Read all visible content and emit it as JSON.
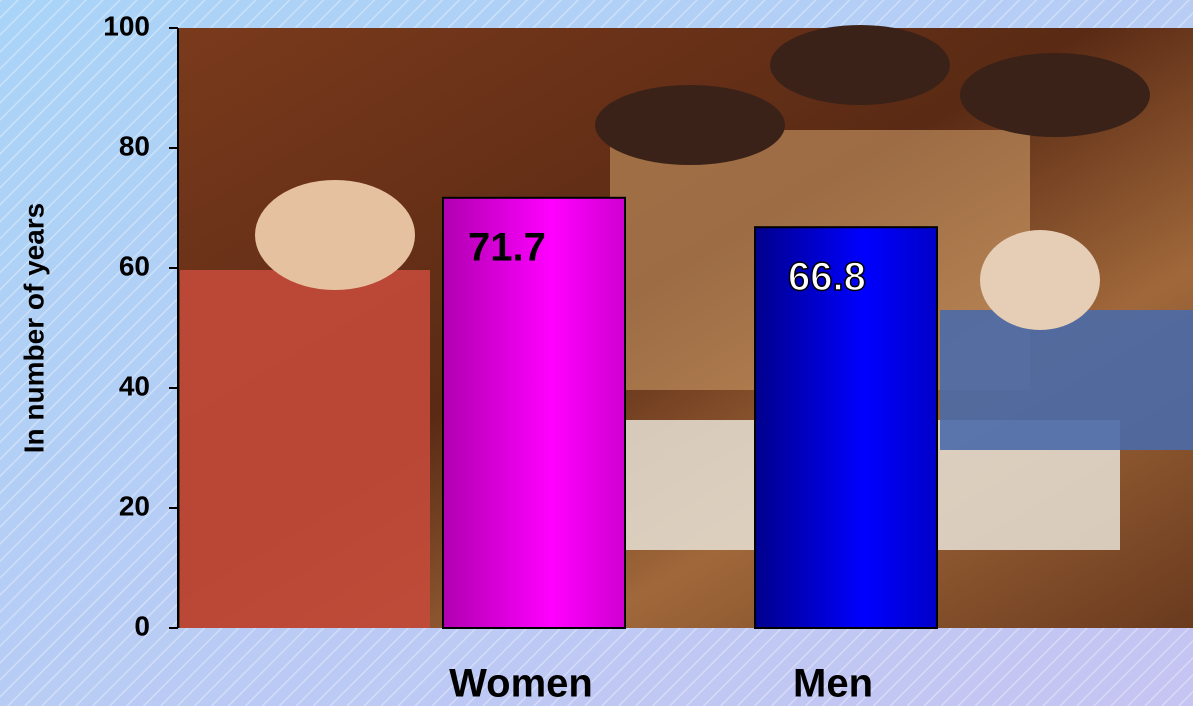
{
  "chart_data": {
    "type": "bar",
    "y_label": "In number of years",
    "categories": [
      "Women",
      "Men"
    ],
    "values": [
      71.7,
      66.8
    ],
    "colors": [
      "#ff00ff",
      "#0000ff"
    ],
    "ylim": [
      0,
      100
    ],
    "yticks": [
      0,
      20,
      40,
      60,
      80,
      100
    ]
  }
}
